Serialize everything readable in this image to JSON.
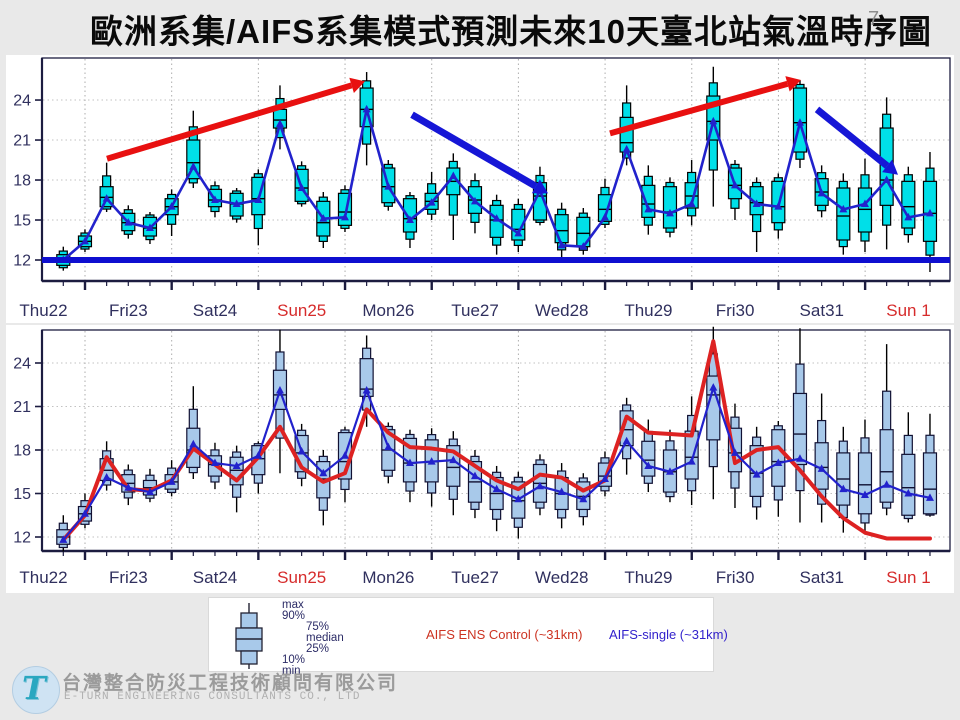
{
  "title": "歐洲系集/AIFS系集模式預測未來10天臺北站氣溫時序圖",
  "page_number": "7",
  "footer": {
    "company_zh": "台灣整合防災工程技術顧問有限公司",
    "company_en": "E-TURN ENGINEERING CONSULTANTS CO., LTD",
    "logo_glyph": "T"
  },
  "legend": {
    "box_labels": [
      "max",
      "90%",
      "75%",
      "median",
      "25%",
      "10%",
      "min"
    ],
    "box_label_indent": [
      0,
      0,
      1,
      1,
      1,
      0,
      0
    ],
    "control_label": "AIFS ENS Control (~31km)",
    "single_label": "AIFS-single (~31km)",
    "control_color": "#cc3322",
    "single_color": "#3322cc",
    "box_fill": "#a8c9ea"
  },
  "colors": {
    "slide_bg": "#e9e9e9",
    "panel_bg": "#ffffff",
    "axis": "#1c1c40",
    "grid": "#c2c2c2",
    "day_grid": "#adadad",
    "day_label": "#30305e",
    "day_label_red": "#d62b2b",
    "top_box_fill": "#00dfe8",
    "top_box_stroke": "#000000",
    "bottom_box_fill": "#a8c9ea",
    "bottom_box_stroke": "#111133",
    "single_line": "#2222cc",
    "control_line": "#dd2222",
    "hline12": "#0f0fd0",
    "red_arrow": "#e81010",
    "blue_arrow": "#1616d6"
  },
  "chart_data": [
    {
      "id": "upper",
      "type": "boxplot+line",
      "ylabel": "",
      "xlabel": "",
      "y_ticks": [
        12,
        15,
        18,
        21,
        24
      ],
      "ylim": [
        10.4,
        27.2
      ],
      "day_labels": [
        "Thu22",
        "Fri23",
        "Sat24",
        "Sun25",
        "Mon26",
        "Tue27",
        "Wed28",
        "Thu29",
        "Fri30",
        "Sat31",
        "Sun 1"
      ],
      "red_day_indexes": [
        3,
        10
      ],
      "boxes": [
        [
          11.2,
          11.6,
          12.0,
          12.4,
          13.0
        ],
        [
          12.6,
          13.0,
          13.4,
          13.8,
          14.3
        ],
        [
          15.6,
          16.0,
          16.7,
          17.5,
          19.3
        ],
        [
          13.6,
          14.2,
          14.8,
          15.5,
          16.1
        ],
        [
          13.2,
          13.8,
          14.4,
          15.2,
          15.6
        ],
        [
          13.8,
          15.4,
          16.0,
          16.6,
          17.3
        ],
        [
          17.4,
          18.1,
          19.3,
          21.0,
          23.2
        ],
        [
          15.2,
          16.0,
          16.5,
          17.3,
          17.9
        ],
        [
          14.8,
          15.3,
          16.2,
          17.0,
          17.4
        ],
        [
          13.1,
          15.4,
          16.6,
          18.2,
          18.8
        ],
        [
          20.3,
          21.9,
          22.5,
          23.3,
          25.1
        ],
        [
          16.0,
          16.4,
          17.4,
          18.8,
          19.4
        ],
        [
          12.9,
          13.8,
          14.8,
          16.4,
          17.1
        ],
        [
          14.1,
          14.6,
          15.6,
          17.0,
          17.6
        ],
        [
          19.1,
          22.0,
          23.3,
          24.9,
          26.1
        ],
        [
          15.7,
          16.3,
          17.5,
          18.9,
          19.5
        ],
        [
          12.9,
          14.1,
          15.1,
          16.6,
          17.1
        ],
        [
          15.0,
          15.8,
          16.4,
          17.0,
          18.6
        ],
        [
          13.5,
          16.9,
          17.9,
          18.9,
          20.0
        ],
        [
          14.0,
          15.5,
          16.5,
          17.5,
          18.5
        ],
        [
          12.4,
          13.7,
          15.0,
          16.1,
          16.9
        ],
        [
          12.6,
          13.5,
          14.3,
          15.8,
          16.6
        ],
        [
          14.6,
          15.0,
          16.8,
          17.8,
          19.0
        ],
        [
          12.1,
          13.3,
          14.2,
          15.4,
          16.3
        ],
        [
          12.4,
          13.0,
          14.0,
          15.2,
          15.9
        ],
        [
          14.4,
          14.9,
          15.8,
          16.9,
          18.1
        ],
        [
          19.1,
          20.1,
          20.8,
          22.7,
          25.1
        ],
        [
          13.9,
          15.2,
          16.2,
          17.6,
          19.1
        ],
        [
          13.7,
          14.4,
          15.6,
          17.5,
          18.2
        ],
        [
          14.6,
          15.9,
          16.8,
          17.8,
          19.5
        ],
        [
          16.0,
          21.0,
          22.4,
          24.3,
          26.5
        ],
        [
          15.0,
          16.6,
          17.6,
          18.9,
          19.5
        ],
        [
          12.6,
          15.4,
          16.3,
          17.5,
          18.2
        ],
        [
          13.6,
          14.8,
          16.0,
          17.9,
          18.5
        ],
        [
          18.9,
          20.1,
          22.3,
          24.9,
          25.5
        ],
        [
          15.2,
          16.1,
          17.1,
          18.1,
          19.1
        ],
        [
          12.4,
          13.5,
          15.3,
          17.4,
          18.5
        ],
        [
          12.6,
          14.1,
          15.8,
          17.4,
          19.6
        ],
        [
          12.8,
          16.1,
          18.0,
          21.9,
          24.2
        ],
        [
          13.3,
          14.4,
          16.0,
          17.9,
          19.0
        ],
        [
          11.1,
          13.4,
          15.5,
          17.9,
          20.1
        ]
      ],
      "single_line": [
        12.0,
        13.4,
        16.6,
        14.8,
        14.4,
        16.0,
        19.0,
        16.5,
        16.2,
        16.5,
        22.2,
        17.4,
        15.1,
        15.2,
        23.3,
        17.5,
        15.0,
        16.3,
        18.3,
        16.4,
        15.1,
        14.0,
        17.2,
        13.1,
        13.0,
        15.2,
        20.3,
        15.8,
        15.5,
        16.2,
        22.4,
        17.6,
        16.2,
        16.0,
        22.3,
        17.0,
        15.8,
        16.2,
        18.0,
        15.2,
        15.5
      ],
      "hline_temp": 12,
      "arrows": [
        {
          "color": "red",
          "x1": 107,
          "t1": 19.6,
          "x2": 365,
          "t2": 25.4
        },
        {
          "color": "blue",
          "x1": 412,
          "t1": 22.9,
          "x2": 548,
          "t2": 17.0
        },
        {
          "color": "red",
          "x1": 610,
          "t1": 21.5,
          "x2": 801,
          "t2": 25.5
        },
        {
          "color": "blue",
          "x1": 817,
          "t1": 23.3,
          "x2": 898,
          "t2": 18.4
        }
      ]
    },
    {
      "id": "lower",
      "type": "boxplot+line",
      "ylabel": "",
      "xlabel": "",
      "y_ticks": [
        12,
        15,
        18,
        21,
        24
      ],
      "ylim": [
        10.4,
        27.2
      ],
      "day_labels": [
        "Thu22",
        "Fri23",
        "Sat24",
        "Sun25",
        "Mon26",
        "Tue27",
        "Wed28",
        "Thu29",
        "Fri30",
        "Sat31",
        "Sun 1"
      ],
      "red_day_indexes": [
        3,
        10
      ],
      "boxes": [
        [
          11.0,
          11.5,
          12.0,
          12.5,
          13.5
        ],
        [
          12.6,
          13.1,
          13.6,
          14.1,
          15.0
        ],
        [
          15.2,
          15.9,
          16.6,
          17.4,
          18.6
        ],
        [
          14.2,
          15.1,
          15.7,
          16.3,
          17.0
        ],
        [
          14.4,
          14.9,
          15.4,
          15.9,
          16.7
        ],
        [
          14.8,
          15.3,
          15.8,
          16.3,
          17.3
        ],
        [
          16.0,
          16.8,
          18.0,
          19.5,
          22.4
        ],
        [
          15.3,
          16.2,
          17.0,
          17.6,
          18.5
        ],
        [
          13.7,
          15.6,
          16.6,
          17.5,
          18.3
        ],
        [
          15.0,
          16.3,
          17.4,
          18.3,
          18.6
        ],
        [
          16.4,
          20.8,
          21.8,
          23.5,
          26.3
        ],
        [
          15.5,
          16.5,
          17.8,
          19.0,
          19.8
        ],
        [
          12.8,
          14.7,
          16.0,
          17.2,
          18.0
        ],
        [
          14.4,
          16.0,
          17.2,
          19.2,
          19.6
        ],
        [
          19.6,
          21.7,
          22.2,
          24.3,
          25.9
        ],
        [
          15.7,
          16.6,
          18.0,
          19.4,
          19.9
        ],
        [
          14.4,
          15.8,
          17.1,
          18.8,
          19.4
        ],
        [
          14.1,
          15.8,
          17.2,
          18.7,
          19.5
        ],
        [
          13.5,
          15.5,
          16.8,
          18.3,
          19.3
        ],
        [
          13.3,
          14.4,
          15.8,
          17.2,
          18.0
        ],
        [
          12.4,
          13.9,
          15.0,
          16.1,
          16.9
        ],
        [
          11.9,
          13.3,
          14.5,
          15.8,
          16.5
        ],
        [
          13.5,
          14.4,
          15.7,
          17.0,
          17.7
        ],
        [
          12.6,
          13.9,
          15.0,
          16.1,
          17.1
        ],
        [
          12.8,
          13.9,
          14.8,
          15.8,
          16.4
        ],
        [
          14.8,
          15.5,
          16.2,
          17.1,
          17.9
        ],
        [
          16.3,
          18.3,
          19.4,
          20.7,
          21.6
        ],
        [
          15.1,
          16.2,
          17.3,
          18.6,
          20.1
        ],
        [
          14.4,
          15.1,
          16.5,
          18.0,
          19.4
        ],
        [
          14.2,
          16.0,
          17.5,
          19.3,
          21.7
        ],
        [
          14.6,
          18.7,
          21.8,
          23.1,
          26.5
        ],
        [
          14.0,
          16.5,
          17.8,
          19.5,
          21.2
        ],
        [
          13.2,
          14.8,
          16.4,
          18.3,
          19.6
        ],
        [
          13.4,
          15.5,
          17.2,
          19.4,
          20.0
        ],
        [
          13.0,
          17.0,
          19.1,
          21.9,
          26.4
        ],
        [
          13.0,
          15.3,
          16.8,
          18.5,
          21.9
        ],
        [
          12.3,
          14.2,
          16.0,
          17.8,
          19.6
        ],
        [
          12.2,
          13.6,
          15.6,
          17.8,
          20.1
        ],
        [
          13.5,
          14.4,
          16.5,
          19.4,
          25.3
        ],
        [
          13.0,
          13.5,
          15.4,
          17.7,
          20.6
        ],
        [
          13.4,
          13.6,
          15.3,
          17.8,
          20.5
        ]
      ],
      "single_line": [
        11.8,
        13.6,
        16.1,
        15.4,
        15.1,
        15.8,
        18.4,
        17.1,
        16.9,
        17.6,
        22.1,
        17.9,
        16.4,
        17.6,
        22.1,
        18.2,
        17.1,
        17.2,
        17.3,
        16.2,
        15.3,
        14.6,
        15.5,
        15.1,
        14.6,
        16.0,
        18.6,
        16.9,
        16.5,
        17.2,
        22.3,
        17.8,
        16.3,
        17.1,
        17.4,
        16.7,
        15.3,
        14.9,
        15.6,
        15.0,
        14.7
      ],
      "control_line": [
        11.8,
        13.5,
        17.5,
        15.3,
        15.2,
        15.9,
        18.1,
        17.0,
        15.9,
        17.5,
        19.6,
        16.8,
        15.8,
        16.4,
        20.8,
        19.2,
        18.2,
        18.1,
        17.9,
        16.9,
        15.9,
        15.3,
        16.3,
        16.1,
        15.2,
        15.9,
        20.3,
        19.2,
        19.1,
        19.0,
        25.5,
        17.1,
        18.0,
        18.2,
        16.6,
        14.8,
        13.3,
        12.3,
        11.9,
        11.9,
        11.9
      ]
    }
  ]
}
